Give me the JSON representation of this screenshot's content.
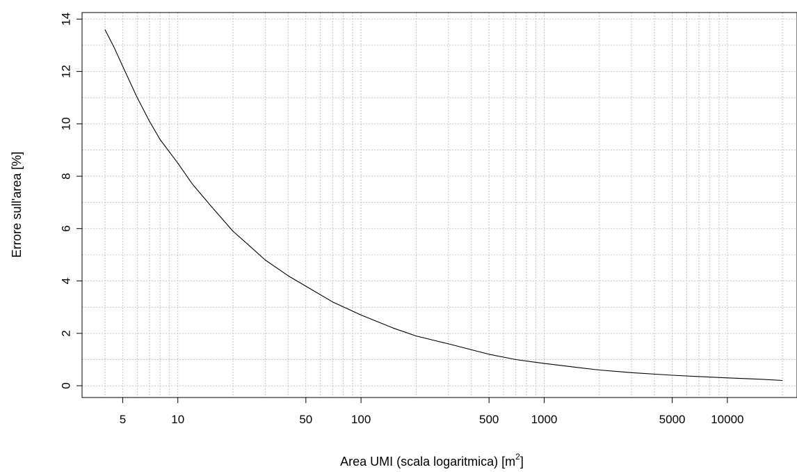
{
  "chart_data": {
    "type": "line",
    "title": "",
    "xlabel": "Area UMI (scala logaritmica) [m",
    "xlabel_sup": "2",
    "xlabel_suffix": "]",
    "ylabel": "Errore sull'area [%]",
    "x_scale": "log",
    "xlim": [
      3,
      24000
    ],
    "ylim": [
      -0.45,
      14.25
    ],
    "grid": true,
    "x_ticks": [
      5,
      10,
      50,
      100,
      500,
      1000,
      5000,
      10000
    ],
    "x_tick_labels": [
      "5",
      "10",
      "50",
      "100",
      "500",
      "1000",
      "5000",
      "10000"
    ],
    "y_ticks": [
      0,
      2,
      4,
      6,
      8,
      10,
      12,
      14
    ],
    "y_tick_labels": [
      "0",
      "2",
      "4",
      "6",
      "8",
      "10",
      "12",
      "14"
    ],
    "series": [
      {
        "color": "#000000",
        "x": [
          4,
          4.5,
          5,
          6,
          7,
          8,
          10,
          12,
          15,
          20,
          25,
          30,
          40,
          50,
          70,
          100,
          150,
          200,
          300,
          500,
          700,
          1000,
          1500,
          2000,
          3000,
          5000,
          7000,
          10000,
          15000,
          20000
        ],
        "y": [
          13.6,
          12.9,
          12.2,
          11.0,
          10.1,
          9.4,
          8.5,
          7.7,
          6.9,
          5.9,
          5.3,
          4.8,
          4.2,
          3.8,
          3.2,
          2.7,
          2.2,
          1.9,
          1.6,
          1.2,
          1.0,
          0.85,
          0.7,
          0.6,
          0.5,
          0.4,
          0.35,
          0.3,
          0.25,
          0.2
        ]
      }
    ]
  }
}
